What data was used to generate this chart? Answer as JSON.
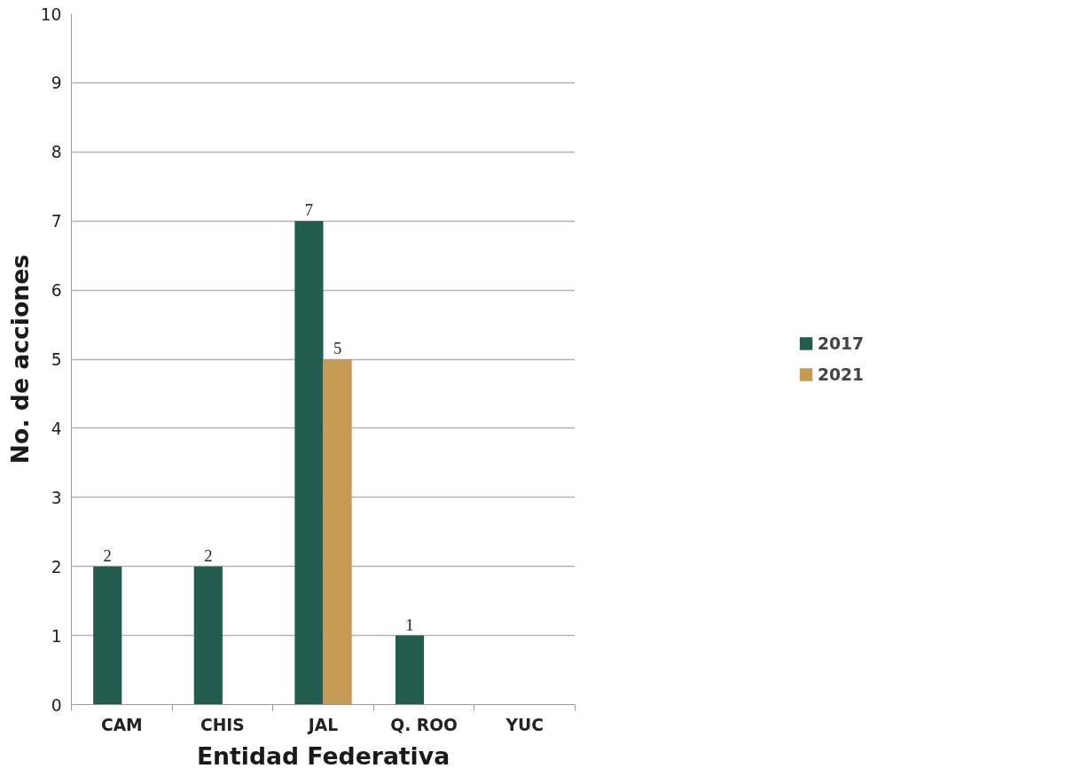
{
  "chart_data": {
    "type": "bar",
    "xlabel": "Entidad Federativa",
    "ylabel": "No. de acciones",
    "categories": [
      "CAM",
      "CHIS",
      "JAL",
      "Q. ROO",
      "YUC"
    ],
    "series": [
      {
        "name": "2017",
        "color": "#235b4e",
        "values": [
          2,
          2,
          7,
          1,
          0
        ],
        "value_labels": [
          "2",
          "2",
          "7",
          "1",
          null
        ]
      },
      {
        "name": "2021",
        "color": "#c49a54",
        "values": [
          0,
          0,
          5,
          0,
          0
        ],
        "value_labels": [
          null,
          null,
          "5",
          null,
          null
        ]
      }
    ],
    "ylim": [
      0,
      10
    ],
    "yticks": [
      0,
      1,
      2,
      3,
      4,
      5,
      6,
      7,
      8,
      9,
      10
    ],
    "grid": "y",
    "legend": "right"
  }
}
